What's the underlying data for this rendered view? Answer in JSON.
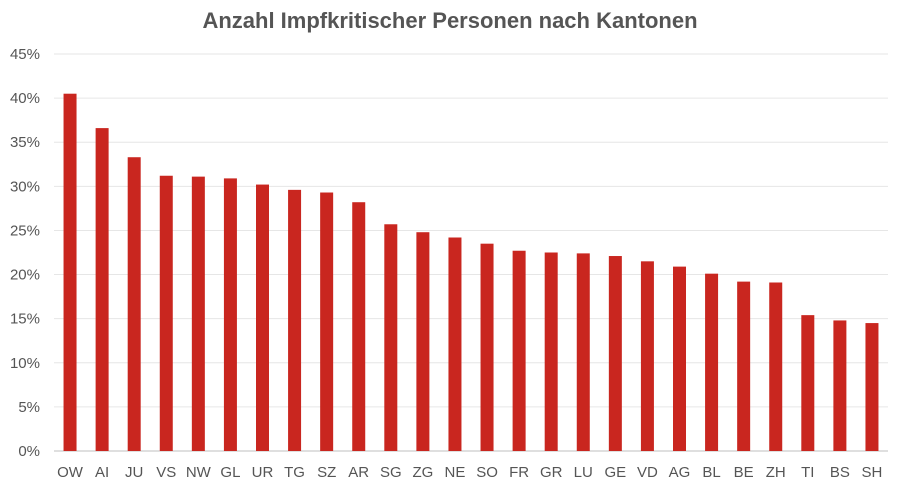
{
  "chart_data": {
    "type": "bar",
    "title": "Anzahl Impfkritischer Personen nach Kantonen",
    "xlabel": "",
    "ylabel": "",
    "categories": [
      "OW",
      "AI",
      "JU",
      "VS",
      "NW",
      "GL",
      "UR",
      "TG",
      "SZ",
      "AR",
      "SG",
      "ZG",
      "NE",
      "SO",
      "FR",
      "GR",
      "LU",
      "GE",
      "VD",
      "AG",
      "BL",
      "BE",
      "ZH",
      "TI",
      "BS",
      "SH"
    ],
    "values": [
      40.5,
      36.6,
      33.3,
      31.2,
      31.1,
      30.9,
      30.2,
      29.6,
      29.3,
      28.2,
      25.7,
      24.8,
      24.2,
      23.5,
      22.7,
      22.5,
      22.4,
      22.1,
      21.5,
      20.9,
      20.1,
      19.2,
      19.1,
      15.4,
      14.8,
      14.5
    ],
    "ylim": [
      0,
      45
    ],
    "yticks": [
      0,
      5,
      10,
      15,
      20,
      25,
      30,
      35,
      40,
      45
    ],
    "ytick_labels": [
      "0%",
      "5%",
      "10%",
      "15%",
      "20%",
      "25%",
      "30%",
      "35%",
      "40%",
      "45%"
    ],
    "grid": true,
    "bar_color": "#c9261f",
    "grid_color": "#e6e6e6",
    "text_color": "#555555"
  }
}
